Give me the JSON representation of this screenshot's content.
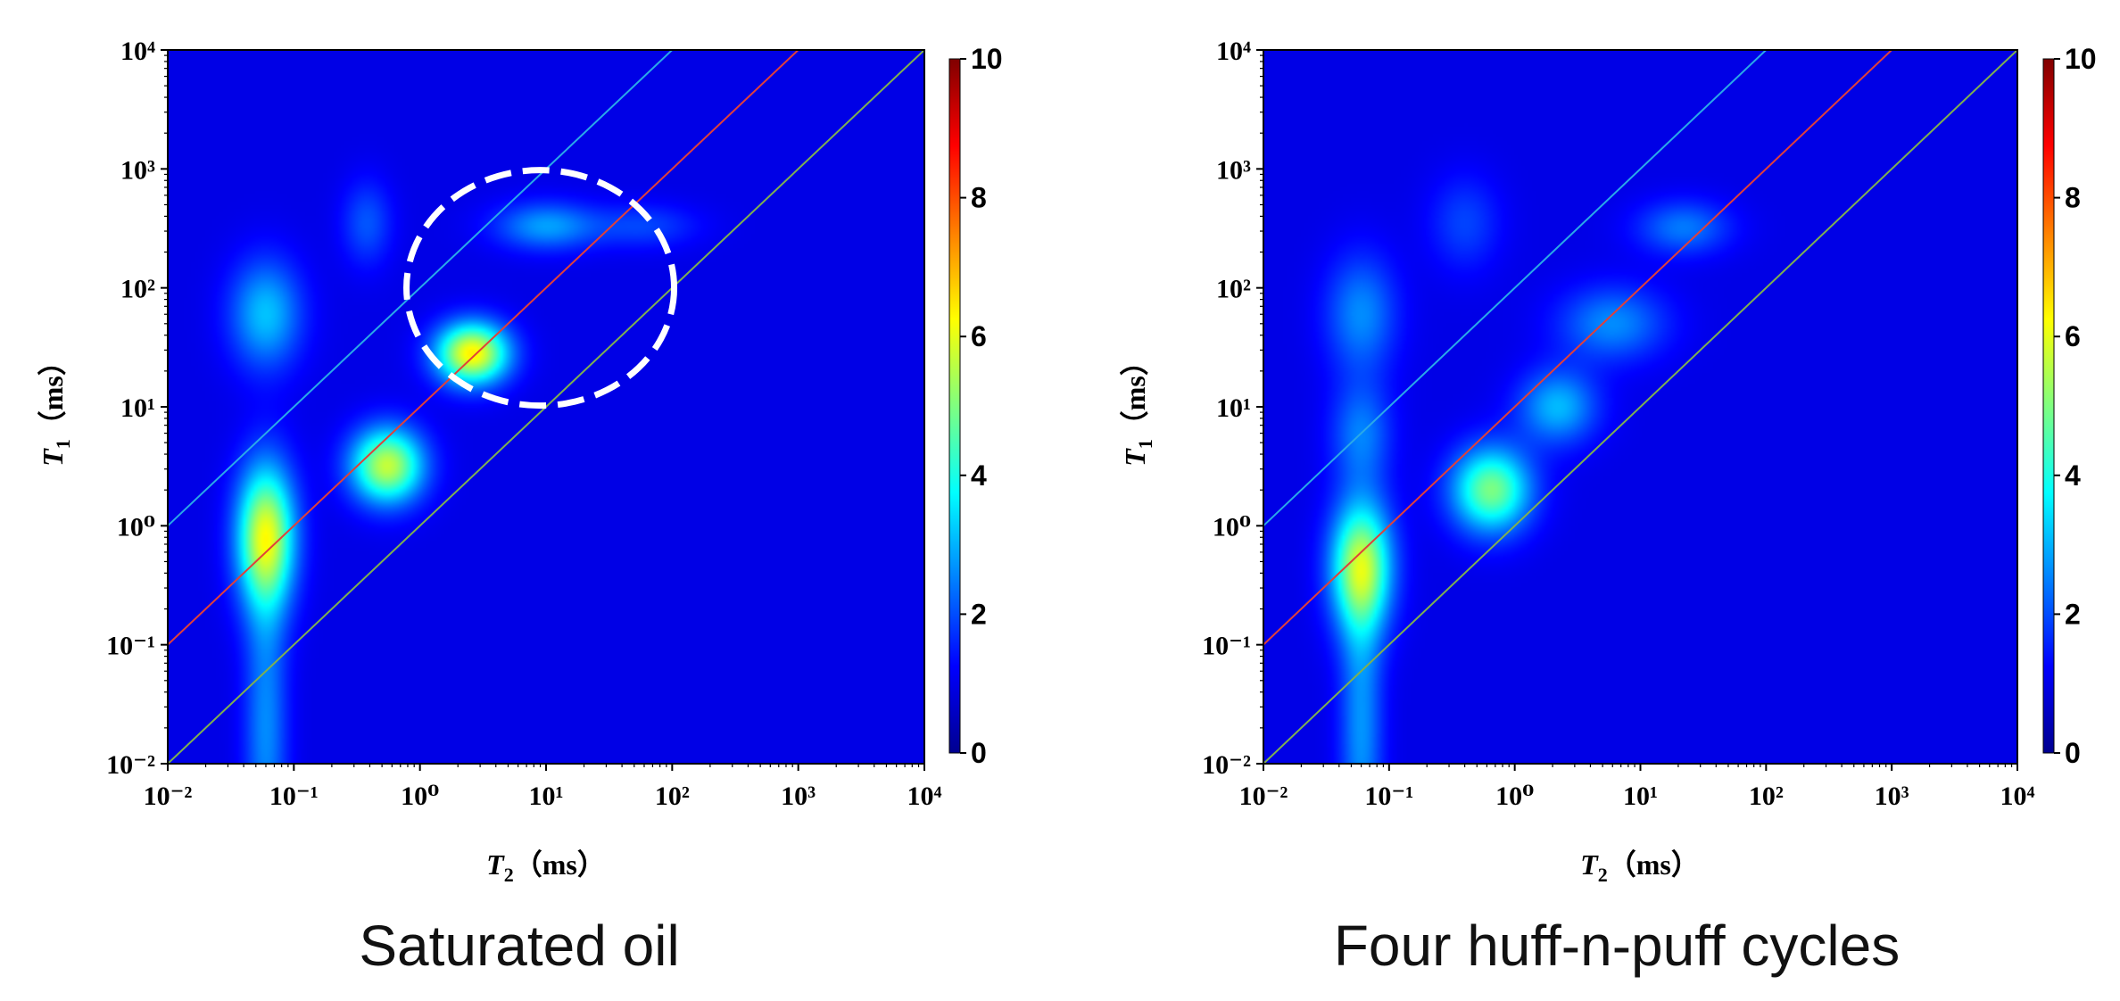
{
  "chart_data": [
    {
      "type": "heatmap",
      "title": "Saturated oil",
      "xlabel": "T2（ms）",
      "ylabel": "T1（ms）",
      "x_scale": "log",
      "y_scale": "log",
      "xlim": [
        0.01,
        10000
      ],
      "ylim": [
        0.01,
        10000
      ],
      "x_ticks": [
        "10⁻²",
        "10⁻¹",
        "10⁰",
        "10¹",
        "10²",
        "10³",
        "10⁴"
      ],
      "y_ticks": [
        "10⁻²",
        "10⁻¹",
        "10⁰",
        "10¹",
        "10²",
        "10³",
        "10⁴"
      ],
      "colorbar": {
        "min": 0,
        "max": 10,
        "ticks": [
          "0",
          "2",
          "4",
          "6",
          "8",
          "10"
        ]
      },
      "reference_lines": [
        {
          "ratio": 100,
          "color": "#2aa9e8"
        },
        {
          "ratio": 10,
          "color": "#e0403a"
        },
        {
          "ratio": 1,
          "color": "#7fb050"
        }
      ],
      "blobs": [
        {
          "t2": 0.06,
          "t1": 0.8,
          "amp": 5.5,
          "sx": 0.16,
          "sy": 0.42
        },
        {
          "t2": 0.06,
          "t1": 0.02,
          "amp": 1.8,
          "sx": 0.12,
          "sy": 0.9
        },
        {
          "t2": 0.06,
          "t1": 60,
          "amp": 2.4,
          "sx": 0.2,
          "sy": 0.32
        },
        {
          "t2": 0.55,
          "t1": 3.2,
          "amp": 5.2,
          "sx": 0.2,
          "sy": 0.22
        },
        {
          "t2": 0.38,
          "t1": 350,
          "amp": 1.2,
          "sx": 0.14,
          "sy": 0.25
        },
        {
          "t2": 2.6,
          "t1": 28,
          "amp": 6.0,
          "sx": 0.2,
          "sy": 0.18
        },
        {
          "t2": 10,
          "t1": 330,
          "amp": 2.0,
          "sx": 0.28,
          "sy": 0.14
        },
        {
          "t2": 60,
          "t1": 330,
          "amp": 1.0,
          "sx": 0.3,
          "sy": 0.13
        }
      ],
      "annotation": {
        "type": "dashed-circle",
        "center_t2": 9,
        "center_t1": 100
      }
    },
    {
      "type": "heatmap",
      "title": "Four huff-n-puff cycles",
      "xlabel": "T2（ms）",
      "ylabel": "T1（ms）",
      "x_scale": "log",
      "y_scale": "log",
      "xlim": [
        0.01,
        10000
      ],
      "ylim": [
        0.01,
        10000
      ],
      "x_ticks": [
        "10⁻²",
        "10⁻¹",
        "10⁰",
        "10¹",
        "10²",
        "10³",
        "10⁴"
      ],
      "y_ticks": [
        "10⁻²",
        "10⁻¹",
        "10⁰",
        "10¹",
        "10²",
        "10³",
        "10⁴"
      ],
      "colorbar": {
        "min": 0,
        "max": 10,
        "ticks": [
          "0",
          "2",
          "4",
          "6",
          "8",
          "10"
        ]
      },
      "reference_lines": [
        {
          "ratio": 100,
          "color": "#2aa9e8"
        },
        {
          "ratio": 10,
          "color": "#e0403a"
        },
        {
          "ratio": 1,
          "color": "#7fb050"
        }
      ],
      "blobs": [
        {
          "t2": 0.06,
          "t1": 0.45,
          "amp": 5.0,
          "sx": 0.17,
          "sy": 0.38
        },
        {
          "t2": 0.06,
          "t1": 0.02,
          "amp": 1.9,
          "sx": 0.12,
          "sy": 0.9
        },
        {
          "t2": 0.06,
          "t1": 60,
          "amp": 1.8,
          "sx": 0.2,
          "sy": 0.35
        },
        {
          "t2": 0.06,
          "t1": 6,
          "amp": 1.6,
          "sx": 0.17,
          "sy": 0.3
        },
        {
          "t2": 0.65,
          "t1": 2.0,
          "amp": 4.4,
          "sx": 0.22,
          "sy": 0.25
        },
        {
          "t2": 2.2,
          "t1": 10,
          "amp": 2.3,
          "sx": 0.22,
          "sy": 0.22
        },
        {
          "t2": 6,
          "t1": 50,
          "amp": 1.8,
          "sx": 0.3,
          "sy": 0.22
        },
        {
          "t2": 0.4,
          "t1": 350,
          "amp": 1.0,
          "sx": 0.2,
          "sy": 0.28
        },
        {
          "t2": 22,
          "t1": 320,
          "amp": 1.6,
          "sx": 0.26,
          "sy": 0.16
        }
      ]
    }
  ]
}
